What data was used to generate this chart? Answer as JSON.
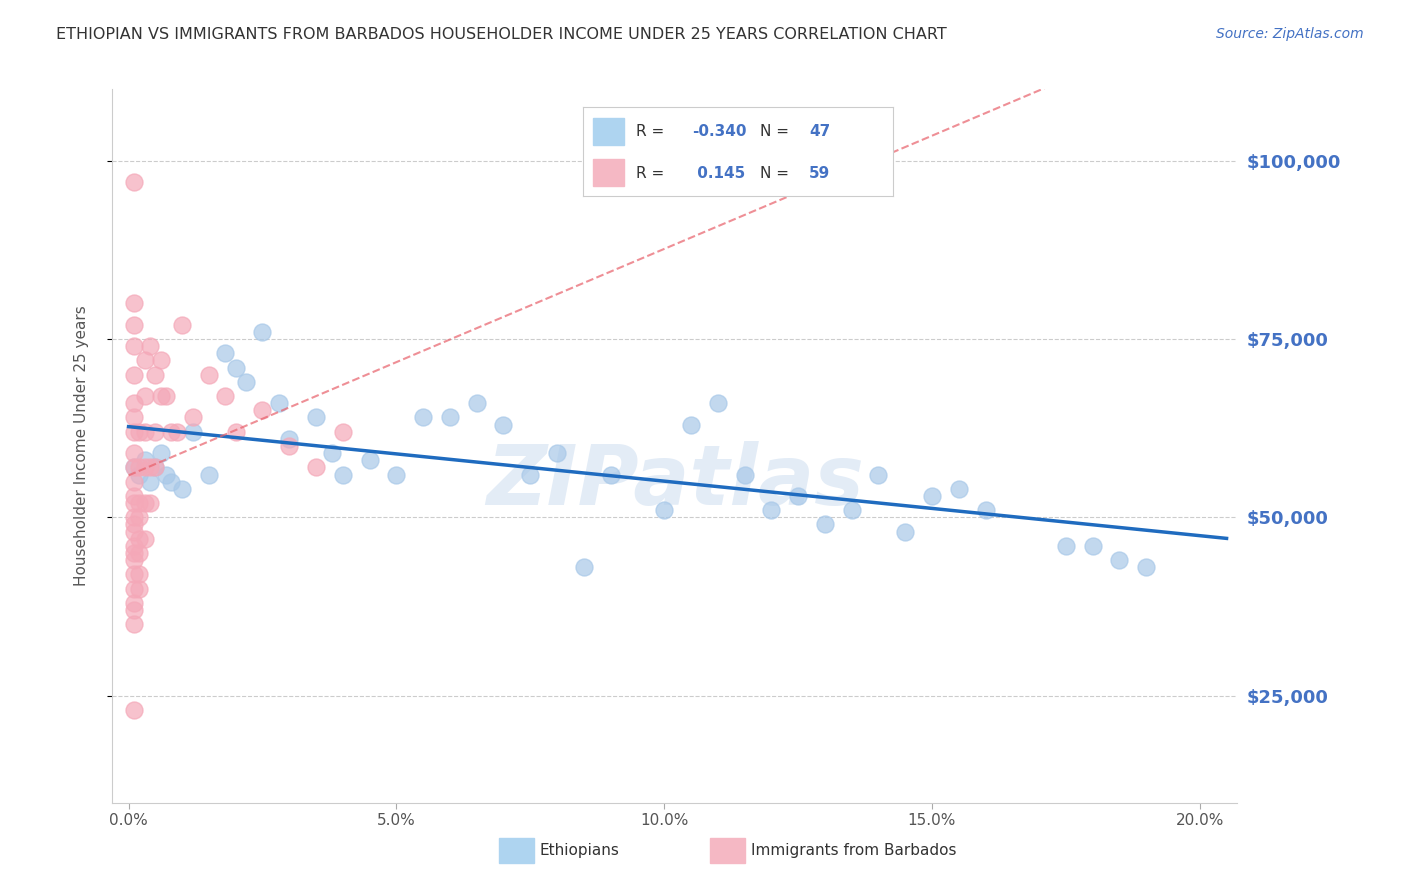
{
  "title": "ETHIOPIAN VS IMMIGRANTS FROM BARBADOS HOUSEHOLDER INCOME UNDER 25 YEARS CORRELATION CHART",
  "source": "Source: ZipAtlas.com",
  "xlabel_ticks": [
    0.0,
    0.05,
    0.1,
    0.15,
    0.2
  ],
  "xlabel_tick_labels": [
    "0.0%",
    "5.0%",
    "10.0%",
    "15.0%",
    "20.0%"
  ],
  "ylabel_ticks": [
    25000,
    50000,
    75000,
    100000
  ],
  "ylabel_tick_labels": [
    "$25,000",
    "$50,000",
    "$75,000",
    "$100,000"
  ],
  "xlim": [
    -0.003,
    0.207
  ],
  "ylim": [
    10000,
    110000
  ],
  "blue_R": -0.34,
  "blue_N": 47,
  "pink_R": 0.145,
  "pink_N": 59,
  "blue_color": "#a8c8e8",
  "pink_color": "#f4a8b8",
  "blue_line_color": "#1f6bbf",
  "pink_line_color": "#e8606a",
  "blue_scatter": [
    [
      0.001,
      57000
    ],
    [
      0.002,
      56000
    ],
    [
      0.003,
      58000
    ],
    [
      0.004,
      55000
    ],
    [
      0.005,
      57000
    ],
    [
      0.006,
      59000
    ],
    [
      0.007,
      56000
    ],
    [
      0.008,
      55000
    ],
    [
      0.01,
      54000
    ],
    [
      0.012,
      62000
    ],
    [
      0.015,
      56000
    ],
    [
      0.018,
      73000
    ],
    [
      0.02,
      71000
    ],
    [
      0.022,
      69000
    ],
    [
      0.025,
      76000
    ],
    [
      0.028,
      66000
    ],
    [
      0.03,
      61000
    ],
    [
      0.035,
      64000
    ],
    [
      0.038,
      59000
    ],
    [
      0.04,
      56000
    ],
    [
      0.045,
      58000
    ],
    [
      0.05,
      56000
    ],
    [
      0.055,
      64000
    ],
    [
      0.06,
      64000
    ],
    [
      0.065,
      66000
    ],
    [
      0.07,
      63000
    ],
    [
      0.075,
      56000
    ],
    [
      0.08,
      59000
    ],
    [
      0.085,
      43000
    ],
    [
      0.09,
      56000
    ],
    [
      0.1,
      51000
    ],
    [
      0.105,
      63000
    ],
    [
      0.11,
      66000
    ],
    [
      0.115,
      56000
    ],
    [
      0.12,
      51000
    ],
    [
      0.125,
      53000
    ],
    [
      0.13,
      49000
    ],
    [
      0.135,
      51000
    ],
    [
      0.14,
      56000
    ],
    [
      0.145,
      48000
    ],
    [
      0.15,
      53000
    ],
    [
      0.155,
      54000
    ],
    [
      0.16,
      51000
    ],
    [
      0.175,
      46000
    ],
    [
      0.18,
      46000
    ],
    [
      0.185,
      44000
    ],
    [
      0.19,
      43000
    ]
  ],
  "pink_scatter": [
    [
      0.001,
      97000
    ],
    [
      0.001,
      80000
    ],
    [
      0.001,
      77000
    ],
    [
      0.001,
      74000
    ],
    [
      0.001,
      70000
    ],
    [
      0.001,
      66000
    ],
    [
      0.001,
      64000
    ],
    [
      0.001,
      62000
    ],
    [
      0.001,
      59000
    ],
    [
      0.001,
      57000
    ],
    [
      0.001,
      55000
    ],
    [
      0.001,
      53000
    ],
    [
      0.001,
      52000
    ],
    [
      0.001,
      50000
    ],
    [
      0.001,
      49000
    ],
    [
      0.001,
      48000
    ],
    [
      0.001,
      46000
    ],
    [
      0.001,
      45000
    ],
    [
      0.001,
      44000
    ],
    [
      0.001,
      42000
    ],
    [
      0.001,
      40000
    ],
    [
      0.001,
      38000
    ],
    [
      0.001,
      37000
    ],
    [
      0.001,
      35000
    ],
    [
      0.001,
      23000
    ],
    [
      0.002,
      62000
    ],
    [
      0.002,
      57000
    ],
    [
      0.002,
      52000
    ],
    [
      0.002,
      50000
    ],
    [
      0.002,
      47000
    ],
    [
      0.002,
      45000
    ],
    [
      0.002,
      42000
    ],
    [
      0.002,
      40000
    ],
    [
      0.003,
      72000
    ],
    [
      0.003,
      67000
    ],
    [
      0.003,
      62000
    ],
    [
      0.003,
      57000
    ],
    [
      0.003,
      52000
    ],
    [
      0.003,
      47000
    ],
    [
      0.004,
      74000
    ],
    [
      0.004,
      57000
    ],
    [
      0.004,
      52000
    ],
    [
      0.005,
      70000
    ],
    [
      0.005,
      62000
    ],
    [
      0.005,
      57000
    ],
    [
      0.006,
      72000
    ],
    [
      0.006,
      67000
    ],
    [
      0.007,
      67000
    ],
    [
      0.008,
      62000
    ],
    [
      0.009,
      62000
    ],
    [
      0.01,
      77000
    ],
    [
      0.012,
      64000
    ],
    [
      0.015,
      70000
    ],
    [
      0.018,
      67000
    ],
    [
      0.02,
      62000
    ],
    [
      0.025,
      65000
    ],
    [
      0.03,
      60000
    ],
    [
      0.035,
      57000
    ],
    [
      0.04,
      62000
    ]
  ],
  "watermark_text": "ZIPatlas",
  "legend_labels": [
    "Ethiopians",
    "Immigrants from Barbados"
  ],
  "background_color": "#ffffff",
  "grid_color": "#cccccc",
  "title_color": "#333333",
  "axis_label_color": "#555555",
  "right_tick_color": "#4472c4"
}
